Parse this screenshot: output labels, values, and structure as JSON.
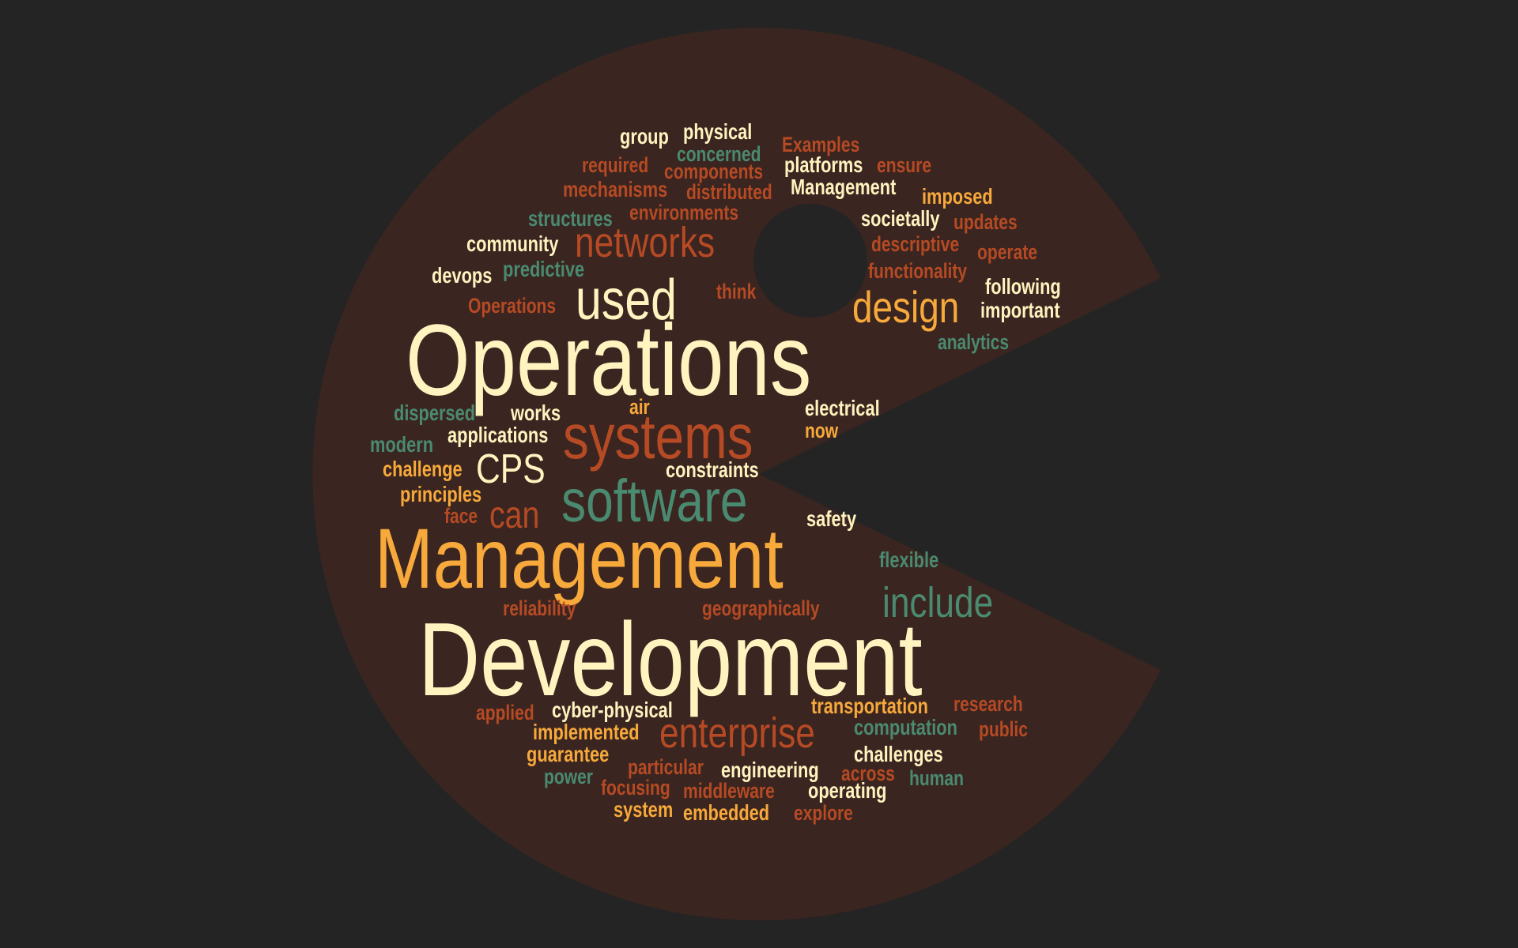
{
  "palette": {
    "background": "#242424",
    "shape": "#3a2520",
    "cream": "#fff3bf",
    "orange": "#f7a93b",
    "rust": "#b64a24",
    "teal": "#4a8a70"
  },
  "shape_icon": "pacman-shape",
  "words": [
    {
      "text": "Development",
      "color": "cream"
    },
    {
      "text": "Operations",
      "color": "cream"
    },
    {
      "text": "Management",
      "color": "orange"
    },
    {
      "text": "software",
      "color": "teal"
    },
    {
      "text": "systems",
      "color": "rust"
    },
    {
      "text": "used",
      "color": "cream"
    },
    {
      "text": "networks",
      "color": "rust"
    },
    {
      "text": "design",
      "color": "orange"
    },
    {
      "text": "include",
      "color": "teal"
    },
    {
      "text": "enterprise",
      "color": "rust"
    },
    {
      "text": "CPS",
      "color": "cream"
    },
    {
      "text": "can",
      "color": "rust"
    },
    {
      "text": "group",
      "color": "cream"
    },
    {
      "text": "physical",
      "color": "cream"
    },
    {
      "text": "Examples",
      "color": "rust"
    },
    {
      "text": "concerned",
      "color": "teal"
    },
    {
      "text": "required",
      "color": "rust"
    },
    {
      "text": "platforms",
      "color": "cream"
    },
    {
      "text": "ensure",
      "color": "rust"
    },
    {
      "text": "components",
      "color": "rust"
    },
    {
      "text": "mechanisms",
      "color": "rust"
    },
    {
      "text": "distributed",
      "color": "rust"
    },
    {
      "text": "Management",
      "color": "cream"
    },
    {
      "text": "imposed",
      "color": "orange"
    },
    {
      "text": "structures",
      "color": "teal"
    },
    {
      "text": "environments",
      "color": "rust"
    },
    {
      "text": "societally",
      "color": "cream"
    },
    {
      "text": "updates",
      "color": "rust"
    },
    {
      "text": "community",
      "color": "cream"
    },
    {
      "text": "descriptive",
      "color": "rust"
    },
    {
      "text": "operate",
      "color": "rust"
    },
    {
      "text": "devops",
      "color": "cream"
    },
    {
      "text": "predictive",
      "color": "teal"
    },
    {
      "text": "functionality",
      "color": "rust"
    },
    {
      "text": "following",
      "color": "cream"
    },
    {
      "text": "think",
      "color": "rust"
    },
    {
      "text": "Operations",
      "color": "rust"
    },
    {
      "text": "important",
      "color": "cream"
    },
    {
      "text": "analytics",
      "color": "teal"
    },
    {
      "text": "dispersed",
      "color": "teal"
    },
    {
      "text": "works",
      "color": "cream"
    },
    {
      "text": "air",
      "color": "orange"
    },
    {
      "text": "electrical",
      "color": "cream"
    },
    {
      "text": "applications",
      "color": "cream"
    },
    {
      "text": "now",
      "color": "orange"
    },
    {
      "text": "modern",
      "color": "teal"
    },
    {
      "text": "challenge",
      "color": "orange"
    },
    {
      "text": "constraints",
      "color": "cream"
    },
    {
      "text": "principles",
      "color": "orange"
    },
    {
      "text": "face",
      "color": "rust"
    },
    {
      "text": "safety",
      "color": "cream"
    },
    {
      "text": "flexible",
      "color": "teal"
    },
    {
      "text": "reliability",
      "color": "rust"
    },
    {
      "text": "geographically",
      "color": "rust"
    },
    {
      "text": "applied",
      "color": "rust"
    },
    {
      "text": "cyber-physical",
      "color": "cream"
    },
    {
      "text": "transportation",
      "color": "orange"
    },
    {
      "text": "research",
      "color": "rust"
    },
    {
      "text": "implemented",
      "color": "orange"
    },
    {
      "text": "computation",
      "color": "teal"
    },
    {
      "text": "public",
      "color": "rust"
    },
    {
      "text": "guarantee",
      "color": "orange"
    },
    {
      "text": "challenges",
      "color": "cream"
    },
    {
      "text": "particular",
      "color": "rust"
    },
    {
      "text": "power",
      "color": "teal"
    },
    {
      "text": "engineering",
      "color": "cream"
    },
    {
      "text": "across",
      "color": "rust"
    },
    {
      "text": "human",
      "color": "teal"
    },
    {
      "text": "focusing",
      "color": "rust"
    },
    {
      "text": "middleware",
      "color": "rust"
    },
    {
      "text": "operating",
      "color": "cream"
    },
    {
      "text": "system",
      "color": "orange"
    },
    {
      "text": "embedded",
      "color": "orange"
    },
    {
      "text": "explore",
      "color": "rust"
    }
  ]
}
